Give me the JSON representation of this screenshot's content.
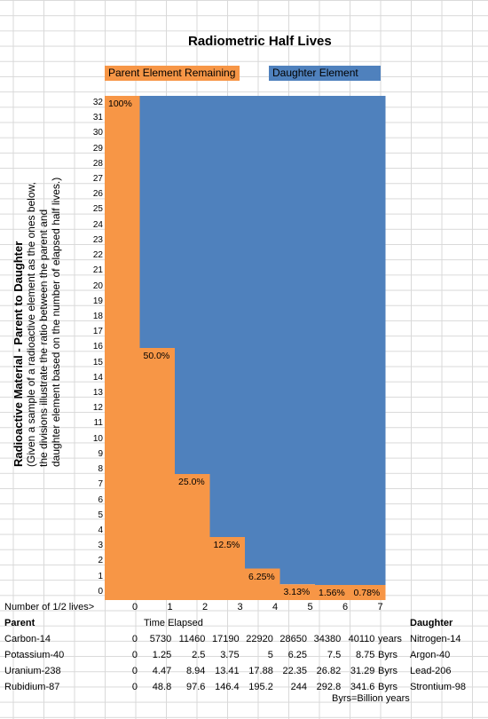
{
  "title": "Radiometric Half Lives",
  "legend": {
    "parent": {
      "label": "Parent Element Remaining",
      "color": "#F79646"
    },
    "daughter": {
      "label": "Daughter Element",
      "color": "#4F81BD"
    }
  },
  "side_label": {
    "line1": "Radioactive Material - Parent to Daughter",
    "line2": "(Given a sample of a radioactive element as the ones below,",
    "line3": "the divisions illustrate the ratio between the parent and",
    "line4": "daughter element based on the number of elapsed half lives.)"
  },
  "chart_data": {
    "type": "bar",
    "stacked": true,
    "title": "Radiometric Half Lives",
    "ylim": [
      0,
      32
    ],
    "y_ticks": [
      0,
      1,
      2,
      3,
      4,
      5,
      6,
      7,
      8,
      9,
      10,
      11,
      12,
      13,
      14,
      15,
      16,
      17,
      18,
      19,
      20,
      21,
      22,
      23,
      24,
      25,
      26,
      27,
      28,
      29,
      30,
      31,
      32
    ],
    "categories": [
      0,
      1,
      2,
      3,
      4,
      5,
      6,
      7
    ],
    "series": [
      {
        "name": "Parent Element Remaining",
        "values": [
          32,
          16,
          8,
          4,
          2,
          1,
          0.5,
          0.25
        ]
      },
      {
        "name": "Daughter Element",
        "values": [
          0,
          16,
          24,
          28,
          30,
          31,
          31.5,
          31.75
        ]
      }
    ],
    "data_labels": [
      "100%",
      "50.0%",
      "25.0%",
      "12.5%",
      "6.25%",
      "3.13%",
      "1.56%",
      "0.78%"
    ]
  },
  "table": {
    "x_axis_label": "Number of 1/2 lives>",
    "x_values": [
      "0",
      "1",
      "2",
      "3",
      "4",
      "5",
      "6",
      "7"
    ],
    "parent_header": "Parent",
    "time_header": "Time Elapsed",
    "daughter_header": "Daughter",
    "rows": [
      {
        "parent": "Carbon-14",
        "values": [
          "0",
          "5730",
          "11460",
          "17190",
          "22920",
          "28650",
          "34380",
          "40110"
        ],
        "unit": "years",
        "daughter": "Nitrogen-14"
      },
      {
        "parent": "Potassium-40",
        "values": [
          "0",
          "1.25",
          "2.5",
          "3.75",
          "5",
          "6.25",
          "7.5",
          "8.75"
        ],
        "unit": "Byrs",
        "daughter": "Argon-40"
      },
      {
        "parent": "Uranium-238",
        "values": [
          "0",
          "4.47",
          "8.94",
          "13.41",
          "17.88",
          "22.35",
          "26.82",
          "31.29"
        ],
        "unit": "Byrs",
        "daughter": "Lead-206"
      },
      {
        "parent": "Rubidium-87",
        "values": [
          "0",
          "48.8",
          "97.6",
          "146.4",
          "195.2",
          "244",
          "292.8",
          "341.6"
        ],
        "unit": "Byrs",
        "daughter": "Strontium-98"
      }
    ],
    "footnote": "Byrs=Billion years"
  }
}
